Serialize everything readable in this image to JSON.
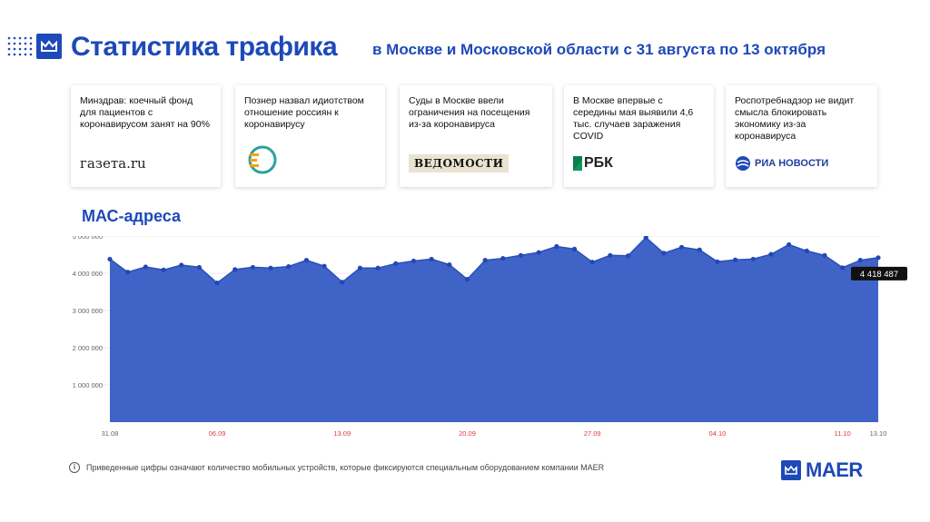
{
  "header": {
    "title": "Статистика трафика",
    "subtitle": "в Москве и Московской области с 31 августа по 13 октября"
  },
  "news": [
    {
      "text": "Минздрав: коечный фонд для пациентов с коронавирусом занят на 90%",
      "source": "газета.ru"
    },
    {
      "text": "Познер назвал идиотством отношение россиян к коронавирусу",
      "source": "ER"
    },
    {
      "text": "Суды в Москве ввели ограничения на посещения из-за коронавируса",
      "source": "ВЕДОМОСТИ"
    },
    {
      "text": "В Москве впервые с середины мая выявили 4,6 тыс. случаев заражения COVID",
      "source": "РБК"
    },
    {
      "text": "Роспотребнадзор не видит смысла блокировать экономику из-за коронавируса",
      "source": "РИА НОВОСТИ"
    }
  ],
  "chart_title": "МАС-адреса",
  "chart_data": {
    "type": "area",
    "title": "МАС-адреса",
    "ylim": [
      0,
      5000000
    ],
    "y_ticks": [
      1000000,
      2000000,
      3000000,
      4000000,
      5000000
    ],
    "y_tick_labels": [
      "1 000 000",
      "2 000 000",
      "3 000 000",
      "4 000 000",
      "5 000 000"
    ],
    "x_tick_labels": [
      {
        "label": "31.08",
        "index": 0,
        "weekend": false
      },
      {
        "label": "06.09",
        "index": 6,
        "weekend": true
      },
      {
        "label": "13.09",
        "index": 13,
        "weekend": true
      },
      {
        "label": "20.09",
        "index": 20,
        "weekend": true
      },
      {
        "label": "27.09",
        "index": 27,
        "weekend": true
      },
      {
        "label": "04.10",
        "index": 34,
        "weekend": true
      },
      {
        "label": "11.10",
        "index": 41,
        "weekend": true
      },
      {
        "label": "13.10",
        "index": 43,
        "weekend": false
      }
    ],
    "x_start": "31.08",
    "x_end": "13.10",
    "values": [
      4380000,
      4030000,
      4170000,
      4090000,
      4220000,
      4160000,
      3740000,
      4100000,
      4160000,
      4140000,
      4180000,
      4350000,
      4190000,
      3760000,
      4140000,
      4140000,
      4260000,
      4330000,
      4380000,
      4230000,
      3840000,
      4350000,
      4400000,
      4480000,
      4560000,
      4720000,
      4650000,
      4300000,
      4480000,
      4470000,
      4960000,
      4540000,
      4700000,
      4630000,
      4310000,
      4360000,
      4380000,
      4510000,
      4770000,
      4600000,
      4480000,
      4150000,
      4350000,
      4418487
    ],
    "last_value_label": "4 418 487",
    "grid": true,
    "colors": {
      "fill": "#3f63c7",
      "line": "#2a50b9",
      "marker": "#2248b5",
      "weekend_tick": "#e0393e",
      "tick": "#666666"
    }
  },
  "footer": {
    "note": "Приведенные цифры означают количество мобильных устройств, которые фиксируются специальным оборудованием компании MAER",
    "info_icon": "i",
    "brand": "MAER"
  }
}
